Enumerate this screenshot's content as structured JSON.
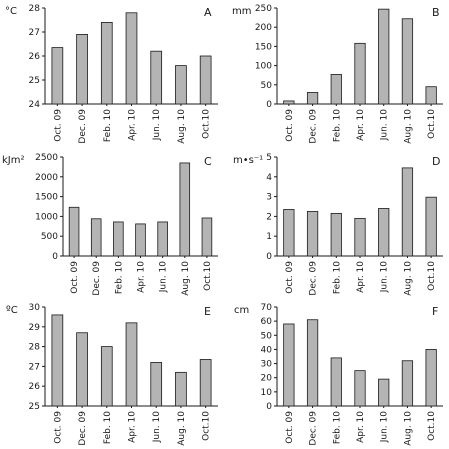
{
  "chart_data": [
    {
      "panel": "A",
      "type": "bar",
      "unit": "°C",
      "categories": [
        "Oct. 09",
        "Dec. 09",
        "Feb. 10",
        "Apr. 10",
        "Jun. 10",
        "Aug. 10",
        "Oct.10"
      ],
      "values": [
        26.35,
        26.9,
        27.4,
        27.8,
        26.2,
        25.6,
        26.0
      ],
      "ylim": [
        24,
        28
      ],
      "yticks": [
        24,
        25,
        26,
        27,
        28
      ]
    },
    {
      "panel": "B",
      "type": "bar",
      "unit": "mm",
      "categories": [
        "Oct. 09",
        "Dec. 09",
        "Feb. 10",
        "Apr. 10",
        "Jun. 10",
        "Aug. 10",
        "Oct.10"
      ],
      "values": [
        8,
        30,
        77,
        158,
        247,
        222,
        45
      ],
      "ylim": [
        0,
        250
      ],
      "yticks": [
        0,
        50,
        100,
        150,
        200,
        250
      ]
    },
    {
      "panel": "C",
      "type": "bar",
      "unit": "kJm²",
      "categories": [
        "Oct. 09",
        "Dec. 09",
        "Feb. 10",
        "Apr. 10",
        "Jun. 10",
        "Aug. 10",
        "Oct.10"
      ],
      "values": [
        1230,
        940,
        860,
        810,
        860,
        2350,
        960
      ],
      "ylim": [
        0,
        2500
      ],
      "yticks": [
        0,
        500,
        1000,
        1500,
        2000,
        2500
      ]
    },
    {
      "panel": "D",
      "type": "bar",
      "unit": "m•s⁻¹",
      "categories": [
        "Oct. 09",
        "Dec. 09",
        "Feb. 10",
        "Apr. 10",
        "Jun. 10",
        "Aug. 10",
        "Oct.10"
      ],
      "values": [
        2.35,
        2.25,
        2.15,
        1.9,
        2.4,
        4.45,
        2.97
      ],
      "ylim": [
        0,
        5
      ],
      "yticks": [
        0,
        1,
        2,
        3,
        4,
        5
      ]
    },
    {
      "panel": "E",
      "type": "bar",
      "unit": "ºC",
      "categories": [
        "Oct. 09",
        "Dec. 09",
        "Feb. 10",
        "Apr. 10",
        "Jun. 10",
        "Aug. 10",
        "Oct.10"
      ],
      "values": [
        29.6,
        28.7,
        28.0,
        29.2,
        27.2,
        26.7,
        27.35
      ],
      "ylim": [
        25,
        30
      ],
      "yticks": [
        25,
        26,
        27,
        28,
        29,
        30
      ]
    },
    {
      "panel": "F",
      "type": "bar",
      "unit": "cm",
      "categories": [
        "Oct. 09",
        "Dec. 09",
        "Feb. 10",
        "Apr. 10",
        "Jun. 10",
        "Aug. 10",
        "Oct.10"
      ],
      "values": [
        58,
        61,
        34,
        25,
        19,
        32,
        40
      ],
      "ylim": [
        0,
        70
      ],
      "yticks": [
        0,
        10,
        20,
        30,
        40,
        50,
        60,
        70
      ]
    }
  ],
  "colors": {
    "bar_fill": "#b4b4b4",
    "bar_stroke": "#1a1a1a",
    "axis": "#1a1a1a"
  }
}
